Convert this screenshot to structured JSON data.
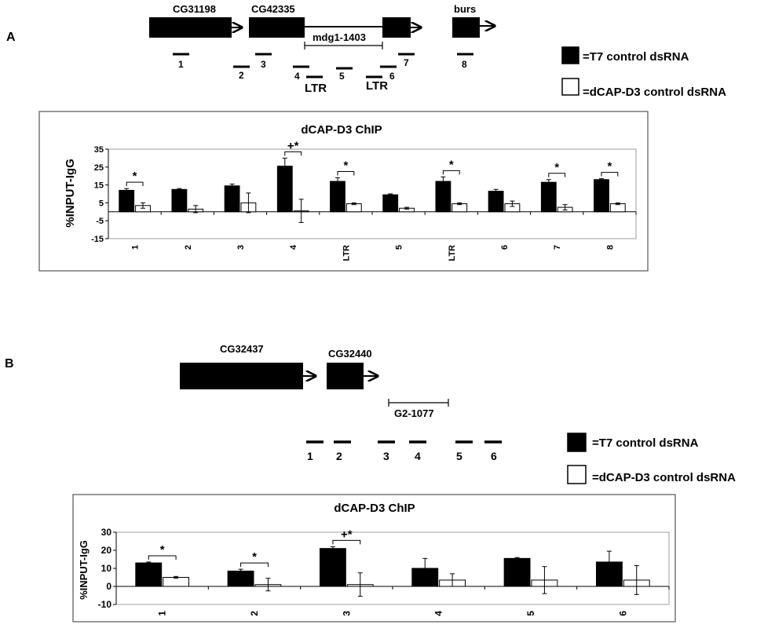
{
  "panel_a": {
    "label": "A",
    "genes": [
      "CG31198",
      "CG42335",
      "burs"
    ],
    "element": "mdg1-1403",
    "probes": [
      "1",
      "2",
      "3",
      "4",
      "5",
      "6",
      "7",
      "8"
    ],
    "ltr": [
      "LTR",
      "LTR"
    ],
    "legend": [
      "=T7 control dsRNA",
      "=dCAP-D3 control dsRNA"
    ]
  },
  "panel_b": {
    "label": "B",
    "genes": [
      "CG32437",
      "CG32440"
    ],
    "element": "G2-1077",
    "probes": [
      "1",
      "2",
      "3",
      "4",
      "5",
      "6"
    ],
    "legend": [
      "=T7 control dsRNA",
      "=dCAP-D3 control dsRNA"
    ]
  },
  "colors": {
    "t7": "#000000",
    "dcap": "#ffffff",
    "frame": "#555555"
  },
  "chart_data": [
    {
      "type": "bar",
      "title": "dCAP-D3 ChIP",
      "ylabel": "%INPUT-IgG",
      "xlabel": "",
      "categories": [
        "1",
        "2",
        "3",
        "4",
        "LTR",
        "5",
        "LTR",
        "6",
        "7",
        "8"
      ],
      "ylim": [
        -15,
        35
      ],
      "yticks": [
        "35",
        "25",
        "15",
        "5",
        "-5",
        "-15"
      ],
      "grid": false,
      "legend": "right",
      "series": [
        {
          "values": [
            12,
            12.5,
            14.5,
            25.5,
            17,
            9.5,
            17,
            11.5,
            16.5,
            18
          ],
          "errors": [
            1,
            0.5,
            1,
            4.5,
            2,
            0.5,
            2.5,
            1,
            1.5,
            0.5
          ]
        },
        {
          "values": [
            3.5,
            1.5,
            5,
            0.5,
            4.5,
            2,
            4.5,
            4.5,
            2.5,
            4.5
          ],
          "errors": [
            1.5,
            2,
            5.5,
            6.5,
            0.5,
            0.5,
            0.5,
            1.5,
            1.5,
            0.5
          ]
        }
      ],
      "significance": [
        "*",
        "",
        "",
        "+*",
        "*",
        "",
        "*",
        "",
        "*",
        "*"
      ]
    },
    {
      "type": "bar",
      "title": "dCAP-D3 ChIP",
      "ylabel": "%INPUT-IgG",
      "xlabel": "",
      "categories": [
        "1",
        "2",
        "3",
        "4",
        "5",
        "6"
      ],
      "ylim": [
        -10,
        30
      ],
      "yticks": [
        "30",
        "20",
        "10",
        "0",
        "-10"
      ],
      "grid": false,
      "legend": "top-right",
      "series": [
        {
          "values": [
            13,
            8.5,
            21,
            10,
            15.5,
            13.5
          ],
          "errors": [
            0.5,
            1,
            1,
            5.5,
            0.5,
            6
          ]
        },
        {
          "values": [
            5,
            1,
            1,
            3.5,
            3.5,
            3.5
          ],
          "errors": [
            0.5,
            3.5,
            6.5,
            3.5,
            7.5,
            8
          ]
        }
      ],
      "significance": [
        "*",
        "*",
        "+*",
        "",
        "",
        ""
      ]
    }
  ]
}
